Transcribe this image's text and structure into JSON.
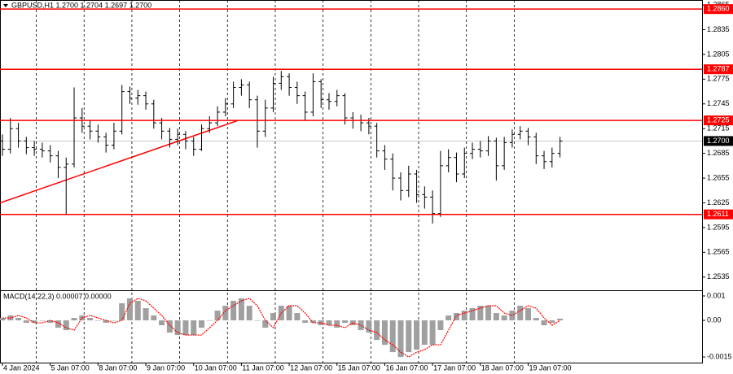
{
  "chart_data": {
    "type": "ohlc",
    "title": "GBPUSD,H1  1.2700 1.2704 1.2697 1.2700",
    "color": "#000000",
    "categories": [
      "4 Jan 2024",
      null,
      null,
      null,
      null,
      null,
      "5 Jan 07:00",
      null,
      null,
      null,
      null,
      null,
      "8 Jan 07:00",
      null,
      null,
      null,
      null,
      null,
      "9 Jan 07:00",
      null,
      null,
      null,
      null,
      null,
      "10 Jan 07:00",
      null,
      null,
      null,
      null,
      null,
      "11 Jan 07:00",
      null,
      null,
      null,
      null,
      null,
      "12 Jan 07:00",
      null,
      null,
      null,
      null,
      null,
      "15 Jan 07:00",
      null,
      null,
      null,
      null,
      null,
      "16 Jan 07:00",
      null,
      null,
      null,
      null,
      null,
      "17 Jan 07:00",
      null,
      null,
      null,
      null,
      null,
      "18 Jan 07:00",
      null,
      null,
      null,
      null,
      null,
      "19 Jan 07:00",
      null,
      null,
      null,
      null
    ],
    "open": [
      1.27,
      1.269,
      1.2715,
      1.27,
      1.2692,
      1.269,
      1.2688,
      1.2682,
      1.2668,
      1.2672,
      1.2728,
      1.2718,
      1.2712,
      1.2705,
      1.2695,
      1.2712,
      1.276,
      1.2752,
      1.2755,
      1.2745,
      1.2722,
      1.2712,
      1.2702,
      1.2708,
      1.27,
      1.269,
      1.2715,
      1.2722,
      1.2735,
      1.2745,
      1.2765,
      1.2768,
      1.275,
      1.2712,
      1.274,
      1.277,
      1.2778,
      1.2765,
      1.2755,
      1.2735,
      1.2772,
      1.275,
      1.2748,
      1.2755,
      1.2728,
      1.2725,
      1.2722,
      1.2718,
      1.2688,
      1.2678,
      1.2655,
      1.264,
      1.266,
      1.2635,
      1.2632,
      1.2612,
      1.267,
      1.268,
      1.266,
      1.2685,
      1.269,
      1.2688,
      1.27,
      1.267,
      1.2698,
      1.2708,
      1.2712,
      1.2705,
      1.2682,
      1.2675,
      1.2685
    ],
    "high": [
      1.2708,
      1.2728,
      1.2722,
      1.2705,
      1.27,
      1.2698,
      1.2695,
      1.2688,
      1.268,
      1.2765,
      1.274,
      1.2725,
      1.272,
      1.271,
      1.2722,
      1.2768,
      1.2766,
      1.2762,
      1.276,
      1.275,
      1.2728,
      1.2716,
      1.2715,
      1.2712,
      1.2705,
      1.272,
      1.273,
      1.2742,
      1.2752,
      1.2772,
      1.2775,
      1.2772,
      1.2755,
      1.275,
      1.2778,
      1.2785,
      1.2782,
      1.2772,
      1.276,
      1.2782,
      1.2775,
      1.2758,
      1.2762,
      1.2758,
      1.2735,
      1.2732,
      1.2728,
      1.2722,
      1.2695,
      1.2685,
      1.2662,
      1.267,
      1.2665,
      1.2645,
      1.264,
      1.2688,
      1.269,
      1.2686,
      1.2692,
      1.2698,
      1.27,
      1.2706,
      1.2704,
      1.2705,
      1.2714,
      1.2718,
      1.2716,
      1.271,
      1.2688,
      1.2692,
      1.2705
    ],
    "low": [
      1.2682,
      1.2685,
      1.2692,
      1.2684,
      1.2682,
      1.268,
      1.2674,
      1.2655,
      1.261,
      1.2668,
      1.271,
      1.2702,
      1.2698,
      1.2686,
      1.269,
      1.2708,
      1.2745,
      1.2744,
      1.2738,
      1.2715,
      1.2702,
      1.2692,
      1.2695,
      1.269,
      1.2682,
      1.2688,
      1.271,
      1.2718,
      1.273,
      1.274,
      1.2755,
      1.274,
      1.2692,
      1.2705,
      1.2735,
      1.2762,
      1.2755,
      1.2745,
      1.2725,
      1.273,
      1.274,
      1.2738,
      1.2742,
      1.272,
      1.2715,
      1.2712,
      1.2708,
      1.268,
      1.2665,
      1.264,
      1.2628,
      1.2632,
      1.2625,
      1.2618,
      1.26,
      1.2608,
      1.2662,
      1.265,
      1.2655,
      1.2678,
      1.268,
      1.2682,
      1.2652,
      1.2665,
      1.2692,
      1.2702,
      1.2695,
      1.2672,
      1.2666,
      1.2668,
      1.268
    ],
    "close": [
      1.269,
      1.2715,
      1.27,
      1.2692,
      1.269,
      1.2688,
      1.2682,
      1.2668,
      1.2672,
      1.2728,
      1.2718,
      1.2712,
      1.2705,
      1.2695,
      1.2712,
      1.276,
      1.2752,
      1.2755,
      1.2745,
      1.2722,
      1.2712,
      1.2702,
      1.2708,
      1.27,
      1.269,
      1.2715,
      1.2722,
      1.2735,
      1.2745,
      1.2765,
      1.2768,
      1.275,
      1.2712,
      1.274,
      1.277,
      1.2778,
      1.2765,
      1.2755,
      1.2735,
      1.2772,
      1.275,
      1.2748,
      1.2755,
      1.2728,
      1.2725,
      1.2722,
      1.2718,
      1.2688,
      1.2678,
      1.2655,
      1.264,
      1.266,
      1.2635,
      1.2632,
      1.2612,
      1.267,
      1.268,
      1.266,
      1.2685,
      1.269,
      1.2688,
      1.27,
      1.267,
      1.2698,
      1.2708,
      1.2712,
      1.2705,
      1.2682,
      1.2675,
      1.2685,
      1.27
    ],
    "ylim": [
      1.2519,
      1.2871
    ],
    "yticks": [
      1.2865,
      1.2835,
      1.2805,
      1.2775,
      1.2745,
      1.2715,
      1.2685,
      1.2655,
      1.2625,
      1.2595,
      1.2565,
      1.2535
    ],
    "grid": true,
    "levels": [
      {
        "value": 1.286,
        "label": "1.2860"
      },
      {
        "value": 1.2787,
        "label": "1.2787"
      },
      {
        "value": 1.2725,
        "label": "1.2725"
      },
      {
        "value": 1.2611,
        "label": "1.2611"
      }
    ],
    "level_color": "#ff0000",
    "current_price": {
      "value": 1.27,
      "label": "1.2700"
    },
    "trendline": {
      "values": [
        1.2625,
        1.2725
      ],
      "color": "#ff0000"
    },
    "macd": {
      "title": "MACD(14,22,3) 0.00007 0.00000",
      "histogram": [
        0.0001,
        0.0002,
        0.0001,
        -0.0001,
        -0.0001,
        0,
        -0.0001,
        -0.0003,
        -0.0004,
        0.0001,
        0.0002,
        0.0001,
        0,
        -0.0001,
        0,
        0.0007,
        0.0009,
        0.0008,
        0.0005,
        0.0002,
        -0.0002,
        -0.0005,
        -0.0006,
        -0.0006,
        -0.0006,
        -0.0003,
        0,
        0.0004,
        0.0006,
        0.0008,
        0.0009,
        0.0006,
        0,
        -0.0003,
        0.0003,
        0.0006,
        0.0006,
        0.0003,
        -0.0001,
        -0.0001,
        -0.0002,
        -0.0002,
        -0.0003,
        -0.0001,
        -0.0002,
        -0.0004,
        -0.0005,
        -0.0008,
        -0.001,
        -0.0013,
        -0.0015,
        -0.0013,
        -0.0012,
        -0.001,
        -0.001,
        -0.0004,
        0.0002,
        0.0003,
        0.0004,
        0.0005,
        0.0006,
        0.0006,
        0.0003,
        0.0002,
        0.0004,
        0.0006,
        0.0005,
        0.0001,
        -0.0002,
        -0.0001,
        7e-05
      ],
      "signal": [
        0.0001,
        0.0001,
        0.0002,
        0.0001,
        -0.0001,
        -0.0001,
        0,
        -0.0001,
        -0.0003,
        -0.0004,
        0.0001,
        0.0002,
        0.0001,
        0,
        -0.0001,
        0,
        0.0007,
        0.0009,
        0.0008,
        0.0005,
        0.0002,
        -0.0002,
        -0.0005,
        -0.0006,
        -0.0006,
        -0.0006,
        -0.0003,
        0,
        0.0004,
        0.0006,
        0.0008,
        0.0009,
        0.0006,
        0,
        -0.0003,
        0.0003,
        0.0006,
        0.0006,
        0.0003,
        -0.0001,
        -0.0001,
        -0.0002,
        -0.0002,
        -0.0003,
        -0.0001,
        -0.0002,
        -0.0004,
        -0.0005,
        -0.0008,
        -0.001,
        -0.0013,
        -0.0015,
        -0.0013,
        -0.0012,
        -0.001,
        -0.001,
        -0.0004,
        0.0002,
        0.0003,
        0.0004,
        0.0005,
        0.0006,
        0.0006,
        0.0003,
        0.0002,
        0.0004,
        0.0006,
        0.0005,
        0.0001,
        -0.0002,
        0
      ],
      "histogram_color": "#a0a0a0",
      "signal_color": "#ff0000",
      "ylim": [
        -0.00173,
        0.0012
      ],
      "yticks": [
        0.001,
        {
          "value": 0,
          "label": "0.00"
        },
        -0.0015
      ]
    }
  }
}
